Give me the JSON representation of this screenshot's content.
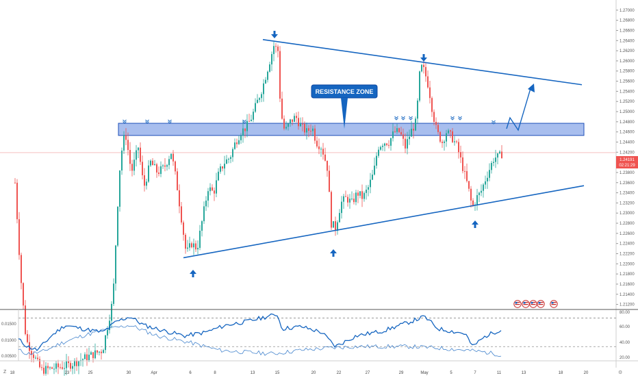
{
  "chart_data": {
    "type": "candlestick",
    "price_axis": {
      "ticks": [
        "1.27000",
        "1.26800",
        "1.26600",
        "1.26400",
        "1.26200",
        "1.26000",
        "1.25800",
        "1.25600",
        "1.25400",
        "1.25200",
        "1.25000",
        "1.24800",
        "1.24600",
        "1.24400",
        "1.24200",
        "1.24000",
        "1.23800",
        "1.23600",
        "1.23400",
        "1.23200",
        "1.23000",
        "1.22800",
        "1.22600",
        "1.22400",
        "1.22200",
        "1.22000",
        "1.21800",
        "1.21600",
        "1.21400",
        "1.21200"
      ],
      "range": [
        1.211,
        1.272
      ],
      "current_price": "1.24191",
      "countdown": "02:21:29"
    },
    "time_axis": {
      "ticks": [
        "18",
        "23",
        "25",
        "30",
        "Apr",
        "6",
        "8",
        "13",
        "15",
        "20",
        "22",
        "27",
        "29",
        "May",
        "5",
        "7",
        "11",
        "13",
        "18",
        "20"
      ]
    },
    "annotations": {
      "resistance_label": "RESISTANCE ZONE",
      "resistance_zone": [
        1.2453,
        1.2477
      ],
      "trendline_top": {
        "from": [
          1.2642,
          "Apr 13"
        ],
        "to": [
          1.2553,
          "May 20"
        ]
      },
      "trendline_bottom": {
        "from": [
          1.2212,
          "Apr 6"
        ],
        "to": [
          1.2354,
          "May 20"
        ]
      }
    },
    "indicator": {
      "left_ticks": [
        "0.01500",
        "0.01000",
        "0.00500"
      ],
      "right_ticks": [
        "80.00",
        "60.00",
        "40.00",
        "20.00"
      ],
      "levels": [
        70,
        30
      ]
    }
  },
  "colors": {
    "up": "#26a69a",
    "down": "#ef5350",
    "zone": "#3f6fd9",
    "trend": "#1565c0",
    "arrow": "#1565c0",
    "price_label": "#ef5350"
  },
  "bottom_bar": {
    "z_label": "Z"
  },
  "event_icons": [
    "us-flag-icon",
    "us-flag-icon",
    "us-flag-icon",
    "us-flag-icon"
  ]
}
